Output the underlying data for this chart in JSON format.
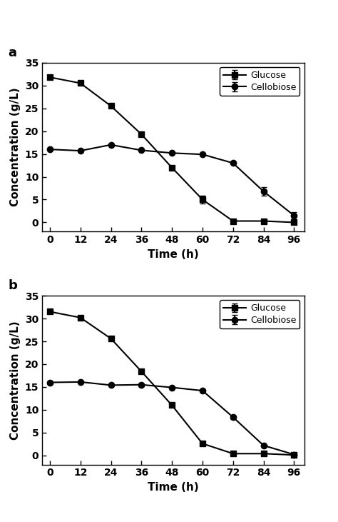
{
  "time": [
    0,
    12,
    24,
    36,
    48,
    60,
    72,
    84,
    96
  ],
  "panel_a": {
    "label": "a",
    "glucose_y": [
      31.8,
      30.5,
      25.5,
      19.3,
      12.0,
      5.0,
      0.3,
      0.3,
      0.0
    ],
    "glucose_yerr": [
      0.0,
      0.0,
      0.0,
      0.0,
      0.0,
      0.8,
      0.0,
      0.0,
      0.0
    ],
    "cellobiose_y": [
      16.0,
      15.7,
      17.0,
      15.8,
      15.2,
      14.9,
      13.0,
      6.8,
      1.5
    ],
    "cellobiose_yerr": [
      0.0,
      0.0,
      0.0,
      0.0,
      0.0,
      0.0,
      0.0,
      1.0,
      0.8
    ]
  },
  "panel_b": {
    "label": "b",
    "glucose_y": [
      31.5,
      30.2,
      25.6,
      18.4,
      11.0,
      2.6,
      0.4,
      0.4,
      0.1
    ],
    "glucose_yerr": [
      0.0,
      0.5,
      0.0,
      0.0,
      0.0,
      0.0,
      0.0,
      0.0,
      0.0
    ],
    "cellobiose_y": [
      16.0,
      16.1,
      15.4,
      15.5,
      14.9,
      14.2,
      8.4,
      2.2,
      0.2
    ],
    "cellobiose_yerr": [
      0.2,
      0.2,
      0.0,
      0.3,
      0.2,
      0.0,
      0.4,
      0.0,
      0.0
    ]
  },
  "xlabel": "Time (h)",
  "ylabel": "Concentration (g/L)",
  "ylim": [
    -2,
    35
  ],
  "yticks": [
    0,
    5,
    10,
    15,
    20,
    25,
    30,
    35
  ],
  "xticks": [
    0,
    12,
    24,
    36,
    48,
    60,
    72,
    84,
    96
  ],
  "legend_glucose": "Glucose",
  "legend_cellobiose": "Cellobiose",
  "line_color": "#000000",
  "marker_glucose": "s",
  "marker_cellobiose": "o",
  "markersize": 6,
  "linewidth": 1.5,
  "capsize": 3
}
